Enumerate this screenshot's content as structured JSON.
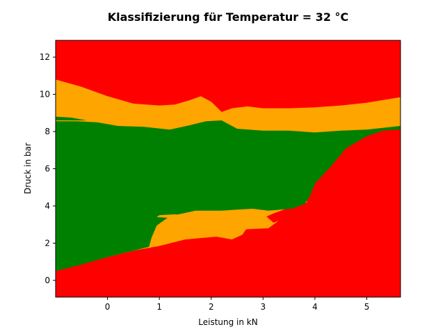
{
  "chart_data": {
    "type": "heatmap",
    "title": "Klassifizierung für Temperatur = 32 °C",
    "xlabel": "Leistung in kN",
    "ylabel": "Druck in bar",
    "xlim": [
      -1.0,
      5.65
    ],
    "ylim": [
      -0.9,
      12.9
    ],
    "xticks": [
      0,
      1,
      2,
      3,
      4,
      5
    ],
    "yticks": [
      0,
      2,
      4,
      6,
      8,
      10,
      12
    ],
    "grid": false,
    "colors": {
      "red": "#ff0000",
      "orange": "#ffa500",
      "green": "#008000"
    },
    "background_class": "red",
    "regions": [
      {
        "class": "orange",
        "points": [
          [
            -1.0,
            10.8
          ],
          [
            -0.5,
            10.4
          ],
          [
            0.0,
            9.9
          ],
          [
            0.5,
            9.5
          ],
          [
            1.0,
            9.4
          ],
          [
            1.3,
            9.45
          ],
          [
            1.6,
            9.7
          ],
          [
            1.8,
            9.9
          ],
          [
            2.0,
            9.6
          ],
          [
            2.2,
            9.05
          ],
          [
            2.4,
            9.25
          ],
          [
            2.7,
            9.35
          ],
          [
            3.0,
            9.25
          ],
          [
            3.5,
            9.25
          ],
          [
            4.0,
            9.3
          ],
          [
            4.5,
            9.4
          ],
          [
            5.0,
            9.55
          ],
          [
            5.65,
            9.85
          ],
          [
            5.65,
            8.25
          ],
          [
            5.4,
            8.2
          ],
          [
            5.0,
            7.95
          ],
          [
            4.6,
            7.35
          ],
          [
            4.2,
            6.35
          ],
          [
            3.9,
            5.3
          ],
          [
            3.8,
            4.8
          ],
          [
            3.85,
            4.2
          ],
          [
            3.55,
            3.95
          ],
          [
            3.2,
            3.6
          ],
          [
            3.0,
            3.35
          ],
          [
            2.8,
            3.25
          ],
          [
            2.6,
            2.45
          ],
          [
            2.4,
            2.2
          ],
          [
            2.1,
            2.35
          ],
          [
            1.5,
            2.2
          ],
          [
            1.0,
            1.85
          ],
          [
            0.5,
            1.6
          ],
          [
            0.0,
            1.25
          ],
          [
            -1.0,
            0.5
          ]
        ]
      },
      {
        "class": "green",
        "points": [
          [
            -1.0,
            8.8
          ],
          [
            -0.7,
            8.75
          ],
          [
            -0.2,
            8.5
          ],
          [
            0.2,
            8.3
          ],
          [
            0.7,
            8.25
          ],
          [
            1.2,
            8.1
          ],
          [
            1.6,
            8.35
          ],
          [
            1.9,
            8.55
          ],
          [
            2.2,
            8.6
          ],
          [
            2.3,
            8.45
          ],
          [
            2.5,
            8.15
          ],
          [
            3.0,
            8.05
          ],
          [
            3.5,
            8.05
          ],
          [
            4.0,
            7.95
          ],
          [
            4.5,
            8.05
          ],
          [
            5.0,
            8.1
          ],
          [
            5.65,
            8.3
          ],
          [
            5.65,
            8.1
          ],
          [
            5.3,
            8.05
          ],
          [
            5.0,
            7.75
          ],
          [
            4.6,
            7.1
          ],
          [
            4.3,
            6.1
          ],
          [
            4.0,
            5.2
          ],
          [
            3.9,
            4.5
          ],
          [
            3.8,
            4.1
          ],
          [
            3.55,
            3.85
          ],
          [
            3.1,
            3.75
          ],
          [
            2.8,
            3.85
          ],
          [
            2.5,
            3.8
          ],
          [
            2.2,
            3.75
          ],
          [
            1.7,
            3.75
          ],
          [
            1.2,
            3.45
          ],
          [
            0.95,
            2.95
          ],
          [
            0.85,
            2.3
          ],
          [
            0.8,
            1.8
          ],
          [
            0.5,
            1.6
          ],
          [
            0.0,
            1.25
          ],
          [
            -0.5,
            0.85
          ],
          [
            -1.0,
            0.5
          ]
        ]
      },
      {
        "class": "orange",
        "points": [
          [
            0.95,
            3.4
          ],
          [
            1.25,
            3.35
          ],
          [
            1.4,
            3.25
          ],
          [
            1.7,
            3.3
          ],
          [
            1.65,
            3.45
          ],
          [
            1.3,
            3.55
          ],
          [
            1.0,
            3.5
          ]
        ]
      },
      {
        "class": "orange",
        "points": [
          [
            1.8,
            3.7
          ],
          [
            2.2,
            3.7
          ],
          [
            2.5,
            3.75
          ],
          [
            2.8,
            3.8
          ],
          [
            3.0,
            3.6
          ],
          [
            3.1,
            3.35
          ],
          [
            3.2,
            3.1
          ],
          [
            3.3,
            3.2
          ],
          [
            3.1,
            2.8
          ],
          [
            2.7,
            2.75
          ],
          [
            2.4,
            2.6
          ],
          [
            2.0,
            2.7
          ],
          [
            1.7,
            2.7
          ],
          [
            1.6,
            3.05
          ],
          [
            1.7,
            3.45
          ]
        ]
      },
      {
        "class": "orange",
        "points": [
          [
            -1.0,
            8.55
          ],
          [
            -0.6,
            8.55
          ],
          [
            -0.2,
            8.5
          ],
          [
            0.2,
            8.45
          ],
          [
            0.2,
            8.55
          ],
          [
            -0.3,
            8.6
          ],
          [
            -1.0,
            8.6
          ]
        ]
      }
    ]
  }
}
